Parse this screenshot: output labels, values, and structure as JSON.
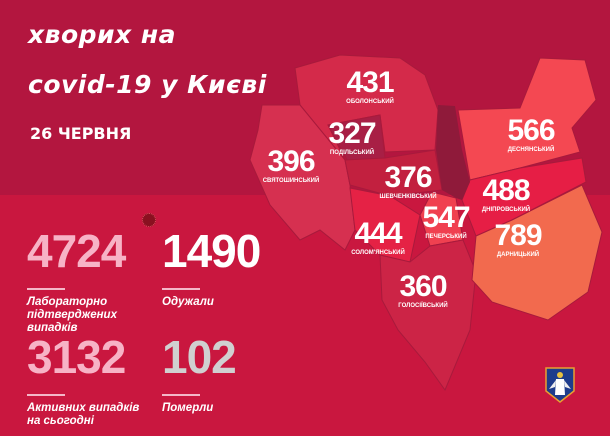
{
  "title": {
    "line1": "хворих на",
    "line2": "covid-19 у Києві",
    "date": "26 ЧЕРВНЯ"
  },
  "districts": [
    {
      "name": "ОБОЛОНСЬКИЙ",
      "value": "431",
      "color": "#d42a4a"
    },
    {
      "name": "ПОДІЛЬСЬКИЙ",
      "value": "327",
      "color": "#a81f45"
    },
    {
      "name": "СВЯТОШИНСЬКИЙ",
      "value": "396",
      "color": "#d63050"
    },
    {
      "name": "ШЕВЧЕНКІВСЬКИЙ",
      "value": "376",
      "color": "#c2203f"
    },
    {
      "name": "СОЛОМ'ЯНСЬКИЙ",
      "value": "444",
      "color": "#e52245"
    },
    {
      "name": "ПЕЧЕРСЬКИЙ",
      "value": "547",
      "color": "#f04050"
    },
    {
      "name": "ГОЛОСІЇВСЬКИЙ",
      "value": "360",
      "color": "#cc2446"
    },
    {
      "name": "ДЕСНЯНСЬКИЙ",
      "value": "566",
      "color": "#f44852"
    },
    {
      "name": "ДНІПРОВСЬКИЙ",
      "value": "488",
      "color": "#e61e45"
    },
    {
      "name": "ДАРНИЦЬКИЙ",
      "value": "789",
      "color": "#f26a4e"
    }
  ],
  "stats": {
    "confirmed": {
      "value": "4724",
      "label": "Лабораторно підтверджених випадків",
      "color": "#f7b3c6"
    },
    "recovered": {
      "value": "1490",
      "label": "Одужали",
      "color": "#ffffff"
    },
    "active": {
      "value": "3132",
      "label": "Активних випадків на сьогодні",
      "color": "#f7b3c6"
    },
    "deaths": {
      "value": "102",
      "label": "Померли",
      "color": "#d0d0d0"
    }
  },
  "icons": {
    "virus": "virus-icon",
    "coat_of_arms": "kyiv-coat-of-arms"
  }
}
